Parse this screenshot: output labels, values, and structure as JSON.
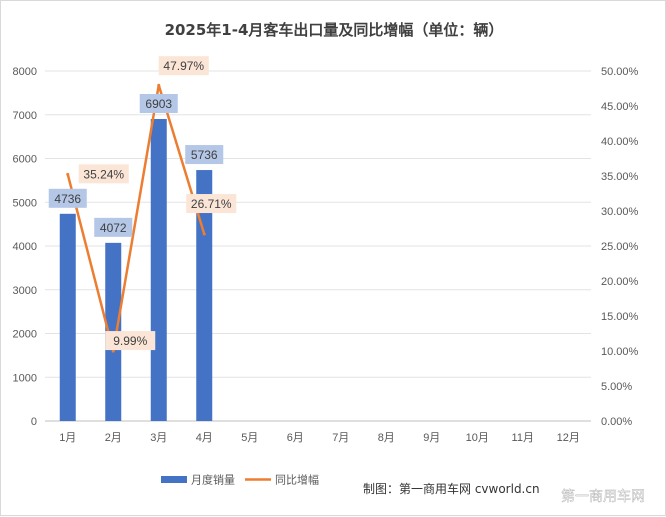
{
  "chart_data": {
    "type": "bar+line",
    "title": "2025年1-4月客车出口量及同比增幅（单位：辆）",
    "categories": [
      "1月",
      "2月",
      "3月",
      "4月",
      "5月",
      "6月",
      "7月",
      "8月",
      "9月",
      "10月",
      "11月",
      "12月"
    ],
    "series": [
      {
        "name": "月度销量",
        "type": "bar",
        "axis": "left",
        "color": "#4472c4",
        "values": [
          4736,
          4072,
          6903,
          5736,
          null,
          null,
          null,
          null,
          null,
          null,
          null,
          null
        ]
      },
      {
        "name": "同比增幅",
        "type": "line",
        "axis": "right",
        "color": "#ed7d31",
        "values": [
          35.24,
          9.99,
          47.97,
          26.71,
          null,
          null,
          null,
          null,
          null,
          null,
          null,
          null
        ]
      }
    ],
    "bar_labels": [
      "4736",
      "4072",
      "6903",
      "5736"
    ],
    "line_labels": [
      "35.24%",
      "9.99%",
      "47.97%",
      "26.71%"
    ],
    "left_axis": {
      "min": 0,
      "max": 8000,
      "step": 1000,
      "ticks": [
        "0",
        "1000",
        "2000",
        "3000",
        "4000",
        "5000",
        "6000",
        "7000",
        "8000"
      ]
    },
    "right_axis": {
      "min": 0,
      "max": 50,
      "step": 5,
      "ticks": [
        "0.00%",
        "5.00%",
        "10.00%",
        "15.00%",
        "20.00%",
        "25.00%",
        "30.00%",
        "35.00%",
        "40.00%",
        "45.00%",
        "50.00%"
      ]
    },
    "grid": true,
    "legend_position": "bottom-left"
  },
  "source_text": "制图：第一商用车网 cvworld.cn",
  "watermark_text": "第一商用车网"
}
